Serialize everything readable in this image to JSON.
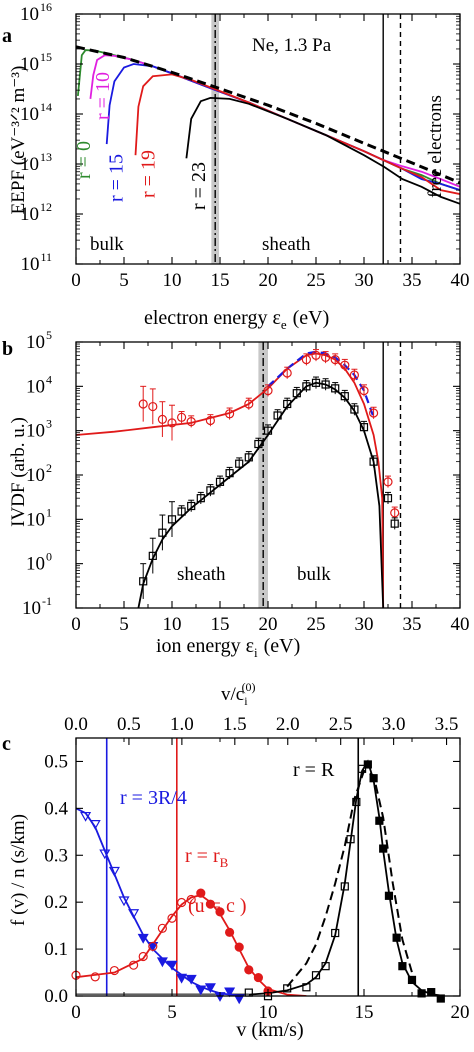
{
  "chart_data": [
    {
      "panel": "a",
      "type": "line",
      "xlabel_main": "electron energy ε",
      "xlabel_sub": "e",
      "xlabel_unit": "(eV)",
      "ylabel": "EEPF (eV⁻³ᐟ² m⁻³)",
      "xlim": [
        0,
        40
      ],
      "ylim": [
        100000000000.0,
        1e+16
      ],
      "log_y": true,
      "x_ticks": [
        0,
        5,
        10,
        15,
        20,
        25,
        30,
        35,
        40
      ],
      "y_tick_exps": [
        11,
        12,
        13,
        14,
        15,
        16
      ],
      "annotations": {
        "gas": "Ne, 1.3 Pa",
        "bulk": "bulk",
        "sheath": "sheath",
        "free": "free electrons"
      },
      "vlines": {
        "dashdot": 14.5,
        "solid": 32.0,
        "dashed": 33.8
      },
      "series": [
        {
          "name": "r = 0",
          "color": "#2e8b2e",
          "x": [
            0.2,
            0.6,
            1,
            2,
            4,
            6,
            8,
            10,
            14,
            18,
            22,
            26,
            30,
            32,
            34,
            36,
            38,
            40
          ],
          "y": [
            230000000000000.0,
            1500000000000000.0,
            1900000000000000.0,
            1850000000000000.0,
            1500000000000000.0,
            1200000000000000.0,
            900000000000000.0,
            650000000000000.0,
            330000000000000.0,
            170000000000000.0,
            80000000000000.0,
            38000000000000.0,
            18000000000000.0,
            12000000000000.0,
            8000000000000.0,
            6000000000000.0,
            4000000000000.0,
            3000000000000.0
          ]
        },
        {
          "name": "r = 10",
          "color": "#e020e0",
          "x": [
            1.5,
            1.8,
            2.2,
            3,
            4,
            6,
            8,
            10,
            14,
            18,
            22,
            26,
            30,
            32,
            34,
            36,
            38,
            40
          ],
          "y": [
            200000000000000.0,
            600000000000000.0,
            1200000000000000.0,
            1500000000000000.0,
            1450000000000000.0,
            1200000000000000.0,
            900000000000000.0,
            650000000000000.0,
            330000000000000.0,
            170000000000000.0,
            80000000000000.0,
            38000000000000.0,
            18000000000000.0,
            12000000000000.0,
            9000000000000.0,
            7000000000000.0,
            5000000000000.0,
            3500000000000.0
          ]
        },
        {
          "name": "r = 15",
          "color": "#1a1ae0",
          "x": [
            3.2,
            3.5,
            4,
            5,
            6,
            8,
            10,
            14,
            18,
            22,
            26,
            30,
            32,
            34,
            36,
            38,
            40
          ],
          "y": [
            25000000000000.0,
            150000000000000.0,
            450000000000000.0,
            850000000000000.0,
            1000000000000000.0,
            900000000000000.0,
            650000000000000.0,
            330000000000000.0,
            170000000000000.0,
            80000000000000.0,
            38000000000000.0,
            18000000000000.0,
            12000000000000.0,
            8000000000000.0,
            5000000000000.0,
            4000000000000.0,
            3000000000000.0
          ]
        },
        {
          "name": "r = 19",
          "color": "#e01a1a",
          "x": [
            6.2,
            6.5,
            7,
            8,
            10,
            12,
            14,
            18,
            22,
            26,
            30,
            32,
            34,
            36,
            38,
            40
          ],
          "y": [
            15000000000000.0,
            140000000000000.0,
            360000000000000.0,
            570000000000000.0,
            620000000000000.0,
            480000000000000.0,
            340000000000000.0,
            170000000000000.0,
            80000000000000.0,
            38000000000000.0,
            18000000000000.0,
            12000000000000.0,
            8000000000000.0,
            5500000000000.0,
            3000000000000.0,
            2500000000000.0
          ]
        },
        {
          "name": "r = 23",
          "color": "#000000",
          "x": [
            11.5,
            12,
            13,
            14,
            16,
            18,
            22,
            26,
            30,
            32,
            34,
            36,
            38,
            40
          ],
          "y": [
            13000000000000.0,
            80000000000000.0,
            180000000000000.0,
            210000000000000.0,
            200000000000000.0,
            160000000000000.0,
            80000000000000.0,
            38000000000000.0,
            15000000000000.0,
            9000000000000.0,
            5000000000000.0,
            3500000000000.0,
            2200000000000.0,
            1600000000000.0
          ]
        },
        {
          "name": "",
          "style": "dashed",
          "color": "#000000",
          "x": [
            0,
            5,
            10,
            15,
            20,
            25,
            30,
            35,
            40
          ],
          "y": [
            2200000000000000.0,
            1350000000000000.0,
            680000000000000.0,
            320000000000000.0,
            150000000000000.0,
            65000000000000.0,
            26000000000000.0,
            10500000000000.0,
            4200000000000.0
          ]
        }
      ]
    },
    {
      "panel": "b",
      "type": "scatter",
      "xlabel_main": "ion energy ε",
      "xlabel_sub": "i",
      "xlabel_unit": "(eV)",
      "ylabel": "IVDF (arb. u.)",
      "xlim": [
        0,
        40
      ],
      "ylim": [
        0.1,
        100000.0
      ],
      "log_y": true,
      "x_ticks": [
        0,
        5,
        10,
        15,
        20,
        25,
        30,
        35,
        40
      ],
      "y_tick_exps": [
        -1,
        0,
        1,
        2,
        3,
        4,
        5
      ],
      "annotations": {
        "sheath": "sheath",
        "bulk": "bulk"
      },
      "vlines": {
        "dashdot": 19.5,
        "solid": 32.0,
        "dashed": 33.8
      },
      "series": [
        {
          "name": "",
          "color": "#e01a1a",
          "marker": "circle",
          "x": [
            7,
            8,
            9,
            10,
            11,
            12,
            14,
            16,
            18,
            20,
            22,
            24,
            25,
            26,
            27,
            28,
            29,
            30,
            31,
            32.5,
            33.2
          ],
          "y": [
            4000,
            3500,
            1800,
            1500,
            2000,
            1600,
            1700,
            2400,
            4000,
            8000,
            20000,
            40000,
            50000,
            45000,
            40000,
            30000,
            18000,
            8000,
            2500,
            70,
            14
          ],
          "line_x": [
            0,
            4,
            8,
            12,
            16,
            18,
            20,
            22,
            24,
            25,
            26,
            27,
            28,
            29,
            30,
            31,
            31.5,
            31.9,
            32
          ],
          "line_y": [
            800,
            950,
            1200,
            1500,
            2500,
            4000,
            9000,
            25000,
            50000,
            55000,
            50000,
            40000,
            25000,
            12000,
            4000,
            800,
            200,
            30,
            0.1
          ]
        },
        {
          "name": "",
          "color": "#000000",
          "marker": "square",
          "x": [
            7,
            8,
            9,
            10,
            11,
            12,
            13,
            14,
            15,
            16,
            17,
            18,
            19,
            20,
            21,
            22,
            23,
            24,
            25,
            26,
            27,
            28,
            29,
            30,
            31,
            32.5,
            33.2
          ],
          "y": [
            0.4,
            1.5,
            5,
            10,
            15,
            20,
            30,
            45,
            70,
            110,
            180,
            250,
            500,
            1000,
            2200,
            4000,
            7000,
            10000,
            12000,
            11000,
            9000,
            6000,
            3000,
            1200,
            200,
            30,
            8
          ],
          "line_x": [
            6.5,
            7,
            8,
            9,
            10,
            12,
            14,
            16,
            18,
            20,
            22,
            24,
            25,
            26,
            27,
            28,
            29,
            30,
            31,
            31.6,
            32
          ],
          "line_y": [
            0.1,
            0.35,
            1.3,
            3.5,
            7,
            18,
            40,
            90,
            200,
            800,
            3500,
            10000,
            12000,
            11000,
            8500,
            5500,
            2800,
            1000,
            200,
            20,
            0.1
          ]
        },
        {
          "name": "",
          "style": "dashed",
          "color": "#1a1ae0",
          "x": [
            20,
            22,
            24,
            25,
            26,
            27,
            28,
            29,
            30,
            31
          ],
          "y": [
            10000,
            25000,
            55000,
            60000,
            55000,
            45000,
            30000,
            18000,
            8000,
            2000
          ]
        }
      ]
    },
    {
      "panel": "c",
      "type": "scatter",
      "xlabel_main": "v (km/s)",
      "ylabel": "f (v) / n (s/km)",
      "top_axis_label": "v/c",
      "top_axis_sub": "i",
      "top_axis_sup": "(0)",
      "xlim": [
        0,
        20
      ],
      "ylim": [
        0,
        0.55
      ],
      "x_ticks": [
        0,
        5,
        10,
        15,
        20
      ],
      "y_ticks": [
        0.0,
        0.1,
        0.2,
        0.3,
        0.4,
        0.5
      ],
      "top_ticks": [
        0.0,
        0.5,
        1.0,
        1.5,
        2.0,
        2.5,
        3.0,
        3.5
      ],
      "annotations": {
        "blue": "r = 3R/4",
        "red1": "r = r",
        "red1_sub": "B",
        "red2": "(u = c )",
        "black": "r = R"
      },
      "vlines": [
        {
          "x": 1.6,
          "color": "#1a1ae0"
        },
        {
          "x": 5.25,
          "color": "#e01a1a"
        },
        {
          "x": 14.7,
          "color": "#000000"
        }
      ],
      "series": [
        {
          "name": "r = 3R/4",
          "color": "#1a1ae0",
          "x": [
            0,
            0.5,
            1,
            1.5,
            2,
            2.5,
            3,
            3.5,
            4,
            4.5,
            5,
            5.5,
            6,
            6.5,
            7,
            7.5,
            8,
            8.5
          ],
          "y": [
            0.4,
            0.39,
            0.36,
            0.31,
            0.26,
            0.21,
            0.17,
            0.13,
            0.1,
            0.08,
            0.06,
            0.045,
            0.03,
            0.02,
            0.012,
            0.006,
            0.003,
            0.001
          ]
        },
        {
          "name": "r = r_B",
          "color": "#e01a1a",
          "x": [
            0,
            1,
            2,
            3,
            3.5,
            4,
            4.5,
            5,
            5.5,
            6,
            6.5,
            7,
            7.5,
            8,
            8.5,
            9,
            9.5,
            10,
            11,
            12
          ],
          "y": [
            0.04,
            0.045,
            0.05,
            0.07,
            0.08,
            0.11,
            0.14,
            0.17,
            0.195,
            0.21,
            0.215,
            0.2,
            0.175,
            0.14,
            0.1,
            0.06,
            0.035,
            0.015,
            0.003,
            0.0
          ]
        },
        {
          "name": "r = R",
          "color": "#000000",
          "x": [
            9,
            10,
            11,
            12,
            12.5,
            13,
            13.5,
            14,
            14.3,
            14.6,
            14.9,
            15.2,
            15.5,
            15.8,
            16,
            16.3,
            16.7,
            17,
            17.5,
            18,
            18.5,
            19
          ],
          "y": [
            0.003,
            0.006,
            0.012,
            0.025,
            0.04,
            0.07,
            0.13,
            0.24,
            0.33,
            0.42,
            0.48,
            0.5,
            0.46,
            0.38,
            0.31,
            0.22,
            0.12,
            0.07,
            0.03,
            0.012,
            0.004,
            0.001
          ]
        },
        {
          "name": "",
          "style": "dashed",
          "color": "#000000",
          "x": [
            11,
            12,
            12.5,
            13,
            13.5,
            14,
            14.5,
            15,
            15.5,
            16,
            16.5,
            17,
            17.5
          ],
          "y": [
            0.02,
            0.07,
            0.11,
            0.17,
            0.24,
            0.32,
            0.42,
            0.48,
            0.47,
            0.38,
            0.24,
            0.12,
            0.05
          ]
        }
      ]
    }
  ]
}
